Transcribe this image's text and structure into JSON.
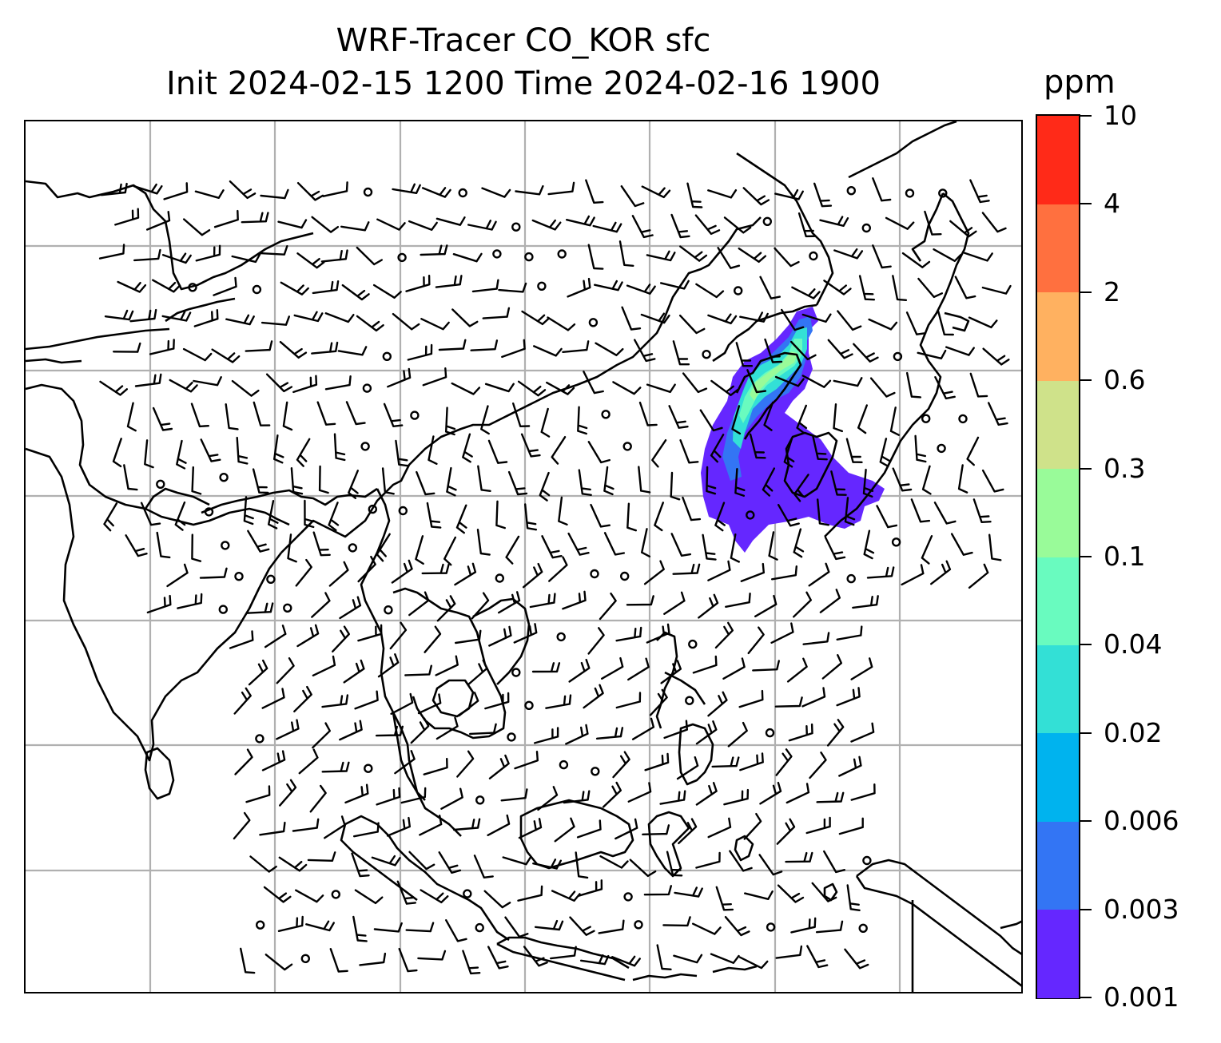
{
  "title": {
    "line1": "WRF-Tracer CO_KOR sfc",
    "line2": "Init 2024-02-15 1200 Time 2024-02-16 1900"
  },
  "colorbar": {
    "unit": "ppm",
    "ticks": [
      "0.001",
      "0.003",
      "0.006",
      "0.02",
      "0.04",
      "0.1",
      "0.3",
      "0.6",
      "2",
      "4",
      "10"
    ],
    "colors": [
      "#6527ff",
      "#3375f4",
      "#00b3ee",
      "#33e0d6",
      "#69fbbf",
      "#99fb99",
      "#cfe28a",
      "#ffb160",
      "#ff703f",
      "#ff2a18"
    ]
  },
  "map": {
    "type": "tracer concentration map with wind barbs",
    "gridlines": true,
    "coastline_color": "#000000",
    "plume_colors": [
      "#6527ff",
      "#3375f4",
      "#33e0d6",
      "#69fbbf",
      "#99fb99"
    ]
  }
}
